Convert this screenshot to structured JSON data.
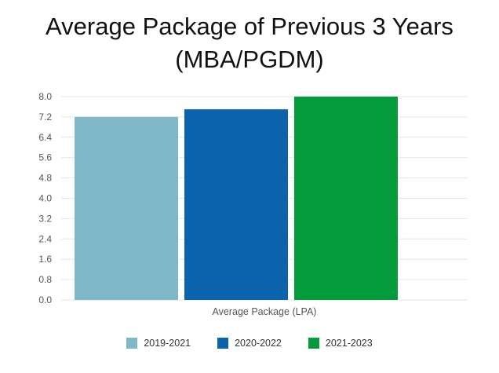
{
  "title_line1": "Average Package of Previous 3 Years",
  "title_line2": "(MBA/PGDM)",
  "chart_data": {
    "type": "bar",
    "categories": [
      "Average Package (LPA)"
    ],
    "series": [
      {
        "name": "2019-2021",
        "values": [
          7.2
        ],
        "color": "#7fb8c8"
      },
      {
        "name": "2020-2022",
        "values": [
          7.5
        ],
        "color": "#0b63ad"
      },
      {
        "name": "2021-2023",
        "values": [
          8.0
        ],
        "color": "#049b3c"
      }
    ],
    "xlabel": "Average Package (LPA)",
    "ylabel": "",
    "ylim": [
      0,
      8.0
    ],
    "yticks": [
      "0.0",
      "0.8",
      "1.6",
      "2.4",
      "3.2",
      "4.0",
      "4.8",
      "5.6",
      "6.4",
      "7.2",
      "8.0"
    ],
    "grid": true,
    "legend_position": "bottom"
  }
}
